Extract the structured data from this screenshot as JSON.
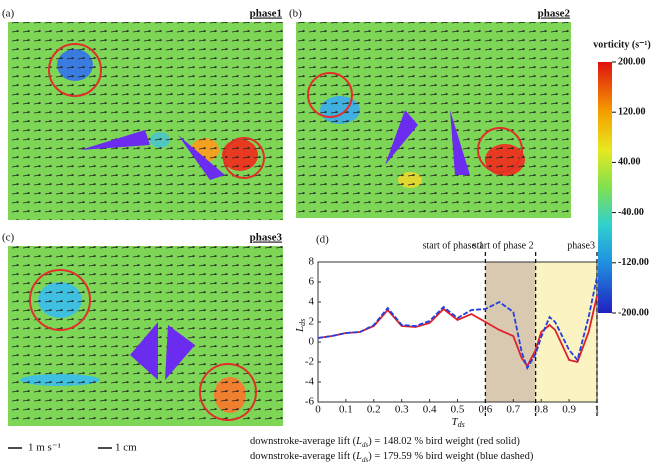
{
  "panels": [
    {
      "label": "(a)",
      "phase": "phase1"
    },
    {
      "label": "(b)",
      "phase": "phase2"
    },
    {
      "label": "(c)",
      "phase": "phase3"
    }
  ],
  "colorbar": {
    "title": "vorticity (s⁻¹)",
    "lim": [
      -200,
      200
    ],
    "ticks": [
      {
        "value": 200,
        "label": "200.00"
      },
      {
        "value": 120,
        "label": "120.00"
      },
      {
        "value": 40,
        "label": "40.00"
      },
      {
        "value": -40,
        "label": "-40.00"
      },
      {
        "value": -120,
        "label": "-120.00"
      },
      {
        "value": -200,
        "label": "-200.00"
      }
    ]
  },
  "scale": {
    "velocity": "1 m s⁻¹",
    "length": "1 cm"
  },
  "notes": [
    {
      "pre": "downstroke-average lift (",
      "sym": "L",
      "sub": "ds",
      "post": ") = 148.02 % bird weight (red solid)"
    },
    {
      "pre": "downstroke-average lift (",
      "sym": "L",
      "sub": "ds",
      "post": ") = 179.59 % bird weight (blue dashed)"
    }
  ],
  "chart_data": {
    "type": "line",
    "panel_label": "(d)",
    "xlabel": "T",
    "xlabel_sub": "ds",
    "ylabel": "L",
    "ylabel_sub": "ds",
    "x": [
      0,
      0.05,
      0.1,
      0.15,
      0.2,
      0.25,
      0.3,
      0.35,
      0.4,
      0.45,
      0.5,
      0.55,
      0.6,
      0.65,
      0.7,
      0.73,
      0.75,
      0.78,
      0.8,
      0.83,
      0.85,
      0.9,
      0.93,
      0.97,
      1
    ],
    "series": [
      {
        "color": "#e0202a",
        "values": [
          0.4,
          0.6,
          0.9,
          1.0,
          1.6,
          3.2,
          1.6,
          1.5,
          1.9,
          3.3,
          2.2,
          2.8,
          2.0,
          1.2,
          0.6,
          -1.6,
          -2.4,
          -0.8,
          1.0,
          1.7,
          1.2,
          -1.8,
          -2.0,
          1.0,
          4.6
        ]
      },
      {
        "color": "#2040e0",
        "values": [
          0.4,
          0.6,
          0.9,
          1.0,
          1.7,
          3.4,
          1.7,
          1.6,
          2.1,
          3.5,
          2.4,
          3.2,
          3.3,
          4.0,
          3.0,
          -1.0,
          -2.6,
          -1.2,
          0.5,
          2.5,
          2.0,
          -0.8,
          -1.8,
          2.5,
          6.5
        ]
      }
    ],
    "xlim": [
      0,
      1
    ],
    "xticks": [
      0,
      0.1,
      0.2,
      0.3,
      0.4,
      0.5,
      0.6,
      0.7,
      0.8,
      0.9,
      1
    ],
    "ylim": [
      -6,
      8
    ],
    "yticks": [
      -6,
      -4,
      -2,
      0,
      2,
      4,
      6,
      8
    ],
    "regions": [
      {
        "from": 0.6,
        "to": 0.78,
        "color": "#d9c9b0"
      },
      {
        "from": 0.78,
        "to": 1,
        "color": "#fbf4c2"
      }
    ],
    "phase_lines": [
      {
        "x": 0.6,
        "label": "start of phase 1"
      },
      {
        "x": 0.78,
        "label": "start of phase 2"
      },
      {
        "x": 1,
        "label": "phase3"
      }
    ]
  }
}
